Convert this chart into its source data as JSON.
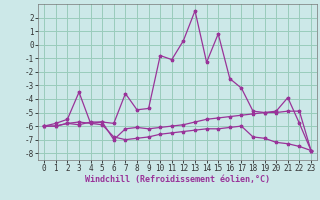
{
  "xlabel": "Windchill (Refroidissement éolien,°C)",
  "background_color": "#cce8e8",
  "grid_color": "#99ccbb",
  "line_color": "#993399",
  "hours": [
    0,
    1,
    2,
    3,
    4,
    5,
    6,
    7,
    8,
    9,
    10,
    11,
    12,
    13,
    14,
    15,
    16,
    17,
    18,
    19,
    20,
    21,
    22,
    23
  ],
  "line1": [
    -6.0,
    -5.8,
    -5.5,
    -3.5,
    -5.8,
    -5.7,
    -5.8,
    -3.6,
    -4.8,
    -4.7,
    -0.8,
    -1.1,
    0.3,
    2.5,
    -1.3,
    0.8,
    -2.5,
    -3.2,
    -4.9,
    -5.0,
    -4.9,
    -3.9,
    -5.8,
    -7.8
  ],
  "line2": [
    -6.0,
    -6.0,
    -5.8,
    -5.9,
    -5.7,
    -5.7,
    -7.0,
    -6.2,
    -6.1,
    -6.2,
    -6.1,
    -6.0,
    -5.9,
    -5.7,
    -5.5,
    -5.4,
    -5.3,
    -5.2,
    -5.1,
    -5.0,
    -5.0,
    -4.9,
    -4.9,
    -7.8
  ],
  "line3": [
    -6.0,
    -6.0,
    -5.8,
    -5.7,
    -5.8,
    -5.9,
    -6.8,
    -7.0,
    -6.9,
    -6.8,
    -6.6,
    -6.5,
    -6.4,
    -6.3,
    -6.2,
    -6.2,
    -6.1,
    -6.0,
    -6.8,
    -6.9,
    -7.2,
    -7.3,
    -7.5,
    -7.8
  ],
  "ylim": [
    -8.5,
    3.0
  ],
  "xlim": [
    -0.5,
    23.5
  ],
  "yticks": [
    -8,
    -7,
    -6,
    -5,
    -4,
    -3,
    -2,
    -1,
    0,
    1,
    2
  ],
  "xticks": [
    0,
    1,
    2,
    3,
    4,
    5,
    6,
    7,
    8,
    9,
    10,
    11,
    12,
    13,
    14,
    15,
    16,
    17,
    18,
    19,
    20,
    21,
    22,
    23
  ],
  "xlabel_color": "#993399",
  "tick_color": "#333333",
  "tick_fontsize": 5.5,
  "xlabel_fontsize": 6.0,
  "line_width": 0.9,
  "marker_size": 2.5
}
